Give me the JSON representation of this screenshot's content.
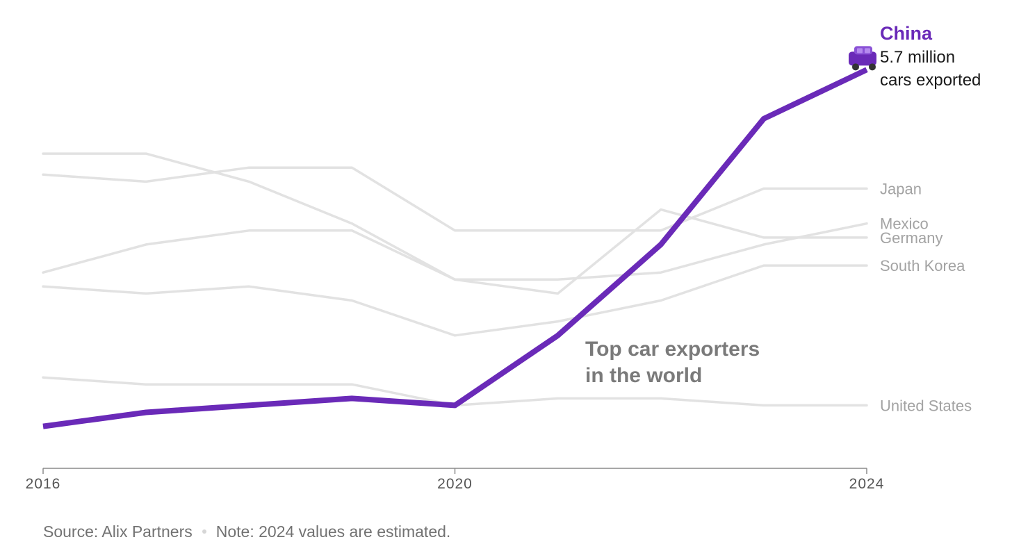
{
  "chart_data": {
    "type": "line",
    "title": "Top car exporters in the world",
    "x": [
      2016,
      2017,
      2018,
      2019,
      2020,
      2021,
      2022,
      2023,
      2024
    ],
    "x_ticks": [
      "2016",
      "2020",
      "2024"
    ],
    "xlim": [
      2016,
      2024
    ],
    "ylim": [
      0,
      6.2
    ],
    "unit": "million cars exported",
    "grid": false,
    "series": [
      {
        "name": "Japan",
        "values": [
          4.2,
          4.1,
          4.3,
          4.3,
          3.4,
          3.4,
          3.4,
          4.0,
          4.0
        ],
        "color": "#e2e2e2"
      },
      {
        "name": "Mexico",
        "values": [
          2.8,
          3.2,
          3.4,
          3.4,
          2.7,
          2.7,
          2.8,
          3.2,
          3.5
        ],
        "color": "#e2e2e2"
      },
      {
        "name": "Germany",
        "values": [
          4.5,
          4.5,
          4.1,
          3.5,
          2.7,
          2.5,
          3.7,
          3.3,
          3.3
        ],
        "color": "#e2e2e2"
      },
      {
        "name": "South Korea",
        "values": [
          2.6,
          2.5,
          2.6,
          2.4,
          1.9,
          2.1,
          2.4,
          2.9,
          2.9
        ],
        "color": "#e2e2e2"
      },
      {
        "name": "United States",
        "values": [
          1.3,
          1.2,
          1.2,
          1.2,
          0.9,
          1.0,
          1.0,
          0.9,
          0.9
        ],
        "color": "#e2e2e2"
      },
      {
        "name": "China",
        "values": [
          0.6,
          0.8,
          0.9,
          1.0,
          0.9,
          1.9,
          3.2,
          5.0,
          5.7
        ],
        "color": "#6a2ab8"
      }
    ],
    "highlight": {
      "name": "China",
      "value_label": "5.7 million",
      "value_label_2": "cars exported",
      "color": "#6a2ab8"
    },
    "other_series_color": "#e2e2e2"
  },
  "footer": {
    "source": "Source: Alix Partners",
    "note": "Note: 2024 values are estimated."
  }
}
